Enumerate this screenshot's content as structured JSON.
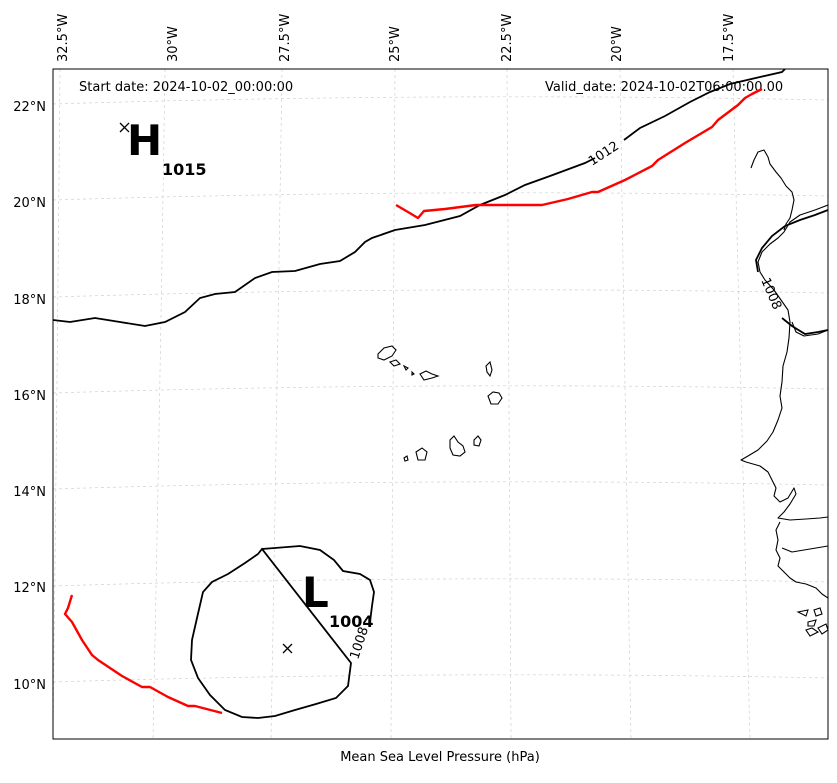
{
  "header": {
    "start_date": "Start date: 2024-10-02_00:00:00",
    "valid_date": "Valid_date: 2024-10-02T06:00:00.00"
  },
  "footer": {
    "xlabel": "Mean Sea Level Pressure (hPa)"
  },
  "axes": {
    "lon_ticks": [
      "32.5°W",
      "30°W",
      "27.5°W",
      "25°W",
      "22.5°W",
      "20°W",
      "17.5°W"
    ],
    "lat_ticks": [
      "22°N",
      "20°N",
      "18°N",
      "16°N",
      "14°N",
      "12°N",
      "10°N"
    ]
  },
  "pressure_centers": {
    "high": {
      "letter": "H",
      "value": "1015"
    },
    "low": {
      "letter": "L",
      "value": "1004"
    }
  },
  "isobar_labels": [
    "1012",
    "1008",
    "1008"
  ],
  "colors": {
    "isobar": "#000000",
    "front": "#ff0000",
    "grid": "#d0d0d0",
    "coastline": "#000000"
  }
}
